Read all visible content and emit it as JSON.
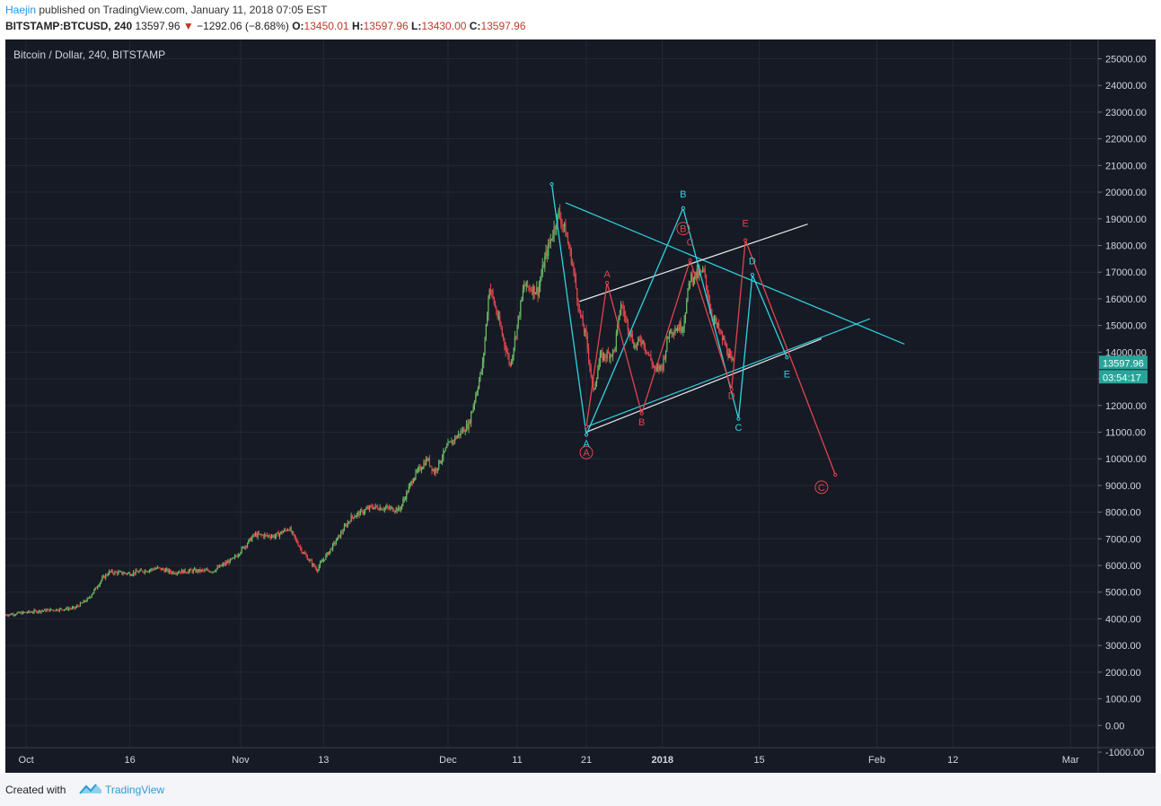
{
  "header": {
    "author": "Haejin",
    "published_text": "published on TradingView.com, January 11, 2018 07:05 EST",
    "symbol": "BITSTAMP:BTCUSD, 240",
    "last": "13597.96",
    "change": "−1292.06 (−8.68%)",
    "o_label": "O:",
    "o": "13450.01",
    "h_label": "H:",
    "h": "13597.96",
    "l_label": "L:",
    "l": "13430.00",
    "c_label": "C:",
    "c": "13597.96"
  },
  "footer": {
    "created_with": "Created with",
    "brand": "TradingView"
  },
  "chart_data": {
    "type": "candlestick",
    "title": "Bitcoin / Dollar, 240, BITSTAMP",
    "ylim": [
      -1000,
      25500
    ],
    "y_ticks": [
      -1000,
      0,
      1000,
      2000,
      3000,
      4000,
      5000,
      6000,
      7000,
      8000,
      9000,
      10000,
      11000,
      12000,
      13000,
      14000,
      15000,
      16000,
      17000,
      18000,
      19000,
      20000,
      21000,
      22000,
      23000,
      24000,
      25000
    ],
    "y_tick_labels": [
      "-1000.00",
      "0.00",
      "1000.00",
      "2000.00",
      "3000.00",
      "4000.00",
      "5000.00",
      "6000.00",
      "7000.00",
      "8000.00",
      "9000.00",
      "10000.00",
      "11000.00",
      "12000.00",
      "13000.00",
      "14000.00",
      "15000.00",
      "16000.00",
      "17000.00",
      "18000.00",
      "19000.00",
      "20000.00",
      "21000.00",
      "22000.00",
      "23000.00",
      "24000.00",
      "25000.00"
    ],
    "x_labels": [
      {
        "text": "Oct",
        "date": "2017-10-01",
        "bold": false
      },
      {
        "text": "16",
        "date": "2017-10-16",
        "bold": false
      },
      {
        "text": "Nov",
        "date": "2017-11-01",
        "bold": false
      },
      {
        "text": "13",
        "date": "2017-11-13",
        "bold": false
      },
      {
        "text": "Dec",
        "date": "2017-12-01",
        "bold": false
      },
      {
        "text": "11",
        "date": "2017-12-11",
        "bold": false
      },
      {
        "text": "21",
        "date": "2017-12-21",
        "bold": false
      },
      {
        "text": "2018",
        "date": "2018-01-01",
        "bold": true
      },
      {
        "text": "15",
        "date": "2018-01-15",
        "bold": false
      },
      {
        "text": "Feb",
        "date": "2018-02-01",
        "bold": false
      },
      {
        "text": "12",
        "date": "2018-02-12",
        "bold": false
      },
      {
        "text": "Mar",
        "date": "2018-03-01",
        "bold": false
      }
    ],
    "x_range": [
      "2017-09-28",
      "2018-03-05"
    ],
    "price_series": [
      [
        "2017-09-28",
        4150
      ],
      [
        "2017-10-03",
        4300
      ],
      [
        "2017-10-08",
        4400
      ],
      [
        "2017-10-10",
        4750
      ],
      [
        "2017-10-12",
        5500
      ],
      [
        "2017-10-13",
        5750
      ],
      [
        "2017-10-16",
        5700
      ],
      [
        "2017-10-20",
        5900
      ],
      [
        "2017-10-22",
        5750
      ],
      [
        "2017-10-25",
        5800
      ],
      [
        "2017-10-28",
        5800
      ],
      [
        "2017-10-31",
        6250
      ],
      [
        "2017-11-03",
        7150
      ],
      [
        "2017-11-06",
        7100
      ],
      [
        "2017-11-08",
        7400
      ],
      [
        "2017-11-10",
        6500
      ],
      [
        "2017-11-12",
        5850
      ],
      [
        "2017-11-14",
        6600
      ],
      [
        "2017-11-17",
        7800
      ],
      [
        "2017-11-20",
        8200
      ],
      [
        "2017-11-24",
        8100
      ],
      [
        "2017-11-26",
        9300
      ],
      [
        "2017-11-28",
        10000
      ],
      [
        "2017-11-29",
        9500
      ],
      [
        "2017-12-01",
        10500
      ],
      [
        "2017-12-04",
        11300
      ],
      [
        "2017-12-06",
        13500
      ],
      [
        "2017-12-07",
        16500
      ],
      [
        "2017-12-09",
        14500
      ],
      [
        "2017-12-10",
        13500
      ],
      [
        "2017-12-12",
        16500
      ],
      [
        "2017-12-14",
        16300
      ],
      [
        "2017-12-15",
        17500
      ],
      [
        "2017-12-17",
        19200
      ],
      [
        "2017-12-18",
        18500
      ],
      [
        "2017-12-19",
        17300
      ],
      [
        "2017-12-20",
        15500
      ],
      [
        "2017-12-21",
        14500
      ],
      [
        "2017-12-22",
        12500
      ],
      [
        "2017-12-23",
        13800
      ],
      [
        "2017-12-25",
        14000
      ],
      [
        "2017-12-26",
        15800
      ],
      [
        "2017-12-28",
        14200
      ],
      [
        "2017-12-29",
        14500
      ],
      [
        "2017-12-31",
        13300
      ],
      [
        "2018-01-01",
        13500
      ],
      [
        "2018-01-02",
        14800
      ],
      [
        "2018-01-04",
        15000
      ],
      [
        "2018-01-05",
        16800
      ],
      [
        "2018-01-07",
        17000
      ],
      [
        "2018-01-08",
        15500
      ],
      [
        "2018-01-09",
        14900
      ],
      [
        "2018-01-10",
        14300
      ],
      [
        "2018-01-11",
        13598
      ]
    ],
    "last_price_label": "13597.96",
    "countdown_label": "03:54:17",
    "annotations": [
      {
        "text": "A",
        "color": "#e0454c",
        "date": "2017-12-24",
        "price": 16800,
        "circled": false
      },
      {
        "text": "B",
        "color": "#e0454c",
        "date": "2017-12-29",
        "price": 11250,
        "circled": false
      },
      {
        "text": "C",
        "color": "#e0454c",
        "date": "2018-01-05",
        "price": 18000,
        "circled": false
      },
      {
        "text": "D",
        "color": "#e0454c",
        "date": "2018-01-11",
        "price": 12250,
        "circled": false
      },
      {
        "text": "E",
        "color": "#e0454c",
        "date": "2018-01-13",
        "price": 18700,
        "circled": false
      },
      {
        "text": "A",
        "color": "#e0454c",
        "date": "2017-12-21",
        "price": 10100,
        "circled": true
      },
      {
        "text": "B",
        "color": "#e0454c",
        "date": "2018-01-04",
        "price": 18500,
        "circled": true
      },
      {
        "text": "C",
        "color": "#e0454c",
        "date": "2018-01-24",
        "price": 8800,
        "circled": true
      },
      {
        "text": "A",
        "color": "#2fd3de",
        "date": "2017-12-21",
        "price": 10450,
        "circled": false
      },
      {
        "text": "B",
        "color": "#2fd3de",
        "date": "2018-01-04",
        "price": 19800,
        "circled": false
      },
      {
        "text": "C",
        "color": "#2fd3de",
        "date": "2018-01-12",
        "price": 11050,
        "circled": false
      },
      {
        "text": "D",
        "color": "#2fd3de",
        "date": "2018-01-14",
        "price": 17300,
        "circled": false
      },
      {
        "text": "E",
        "color": "#2fd3de",
        "date": "2018-01-19",
        "price": 13050,
        "circled": false
      }
    ],
    "wave_lines": [
      {
        "color": "#2fd3de",
        "points": [
          [
            "2017-12-16",
            20300
          ],
          [
            "2017-12-21",
            10900
          ],
          [
            "2018-01-04",
            19400
          ],
          [
            "2018-01-12",
            11500
          ],
          [
            "2018-01-14",
            16900
          ],
          [
            "2018-01-19",
            13800
          ]
        ]
      },
      {
        "color": "#e0454c",
        "points": [
          [
            "2017-12-21",
            11200
          ],
          [
            "2017-12-24",
            16600
          ],
          [
            "2017-12-29",
            11700
          ],
          [
            "2018-01-05",
            17450
          ],
          [
            "2018-01-11",
            12600
          ],
          [
            "2018-01-13",
            18200
          ],
          [
            "2018-01-26",
            9400
          ]
        ]
      }
    ],
    "trend_lines": [
      {
        "color": "#2fd3de",
        "from": [
          "2017-12-18",
          19600
        ],
        "to": [
          "2018-02-05",
          14300
        ]
      },
      {
        "color": "#2fd3de",
        "from": [
          "2017-12-21",
          11200
        ],
        "to": [
          "2018-01-31",
          15250
        ]
      },
      {
        "color": "#e8e8e8",
        "from": [
          "2017-12-20",
          15900
        ],
        "to": [
          "2018-01-22",
          18800
        ]
      },
      {
        "color": "#e8e8e8",
        "from": [
          "2017-12-21",
          11000
        ],
        "to": [
          "2018-01-24",
          14500
        ]
      }
    ],
    "colors": {
      "background": "#161a25",
      "grid": "#232837",
      "up": "#6cba63",
      "down": "#e0454c",
      "axis_text": "#d1d4dc",
      "cyan": "#2fd3de",
      "red": "#e0454c",
      "white": "#e8e8e8",
      "price_badge": "#26a69a"
    }
  }
}
